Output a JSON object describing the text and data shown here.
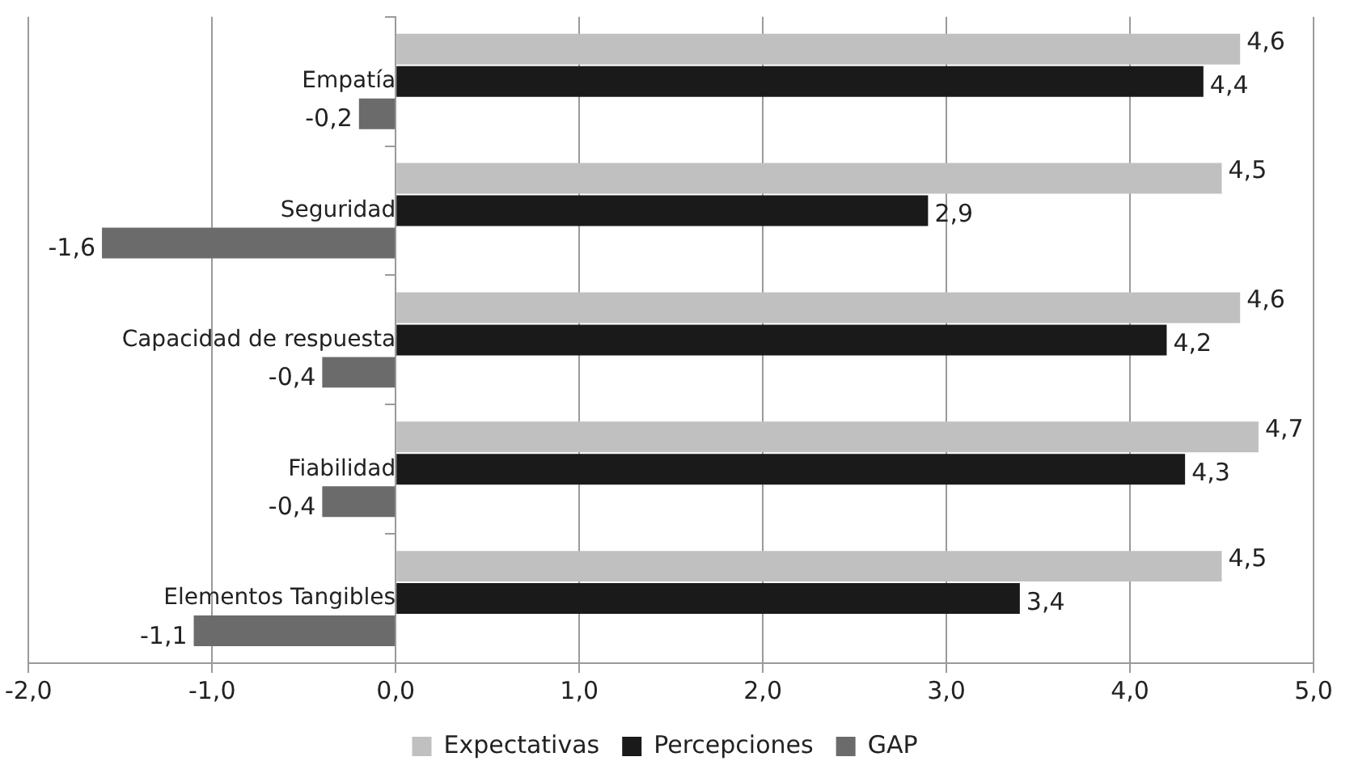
{
  "chart_data": {
    "type": "bar",
    "orientation": "horizontal",
    "categories": [
      "Empatía",
      "Seguridad",
      "Capacidad de respuesta",
      "Fiabilidad",
      "Elementos Tangibles"
    ],
    "series": [
      {
        "name": "Expectativas",
        "color": "#c0c0c0",
        "values": [
          4.6,
          4.5,
          4.6,
          4.7,
          4.5
        ],
        "value_labels": [
          "4,6",
          "4,5",
          "4,6",
          "4,7",
          "4,5"
        ]
      },
      {
        "name": "Percepciones",
        "color": "#1a1a1a",
        "values": [
          4.4,
          2.9,
          4.2,
          4.3,
          3.4
        ],
        "value_labels": [
          "4,4",
          "2,9",
          "4,2",
          "4,3",
          "3,4"
        ]
      },
      {
        "name": "GAP",
        "color": "#6b6b6b",
        "values": [
          -0.2,
          -1.6,
          -0.4,
          -0.4,
          -1.1
        ],
        "value_labels": [
          "-0,2",
          "-1,6",
          "-0,4",
          "-0,4",
          "-1,1"
        ]
      }
    ],
    "xlim": [
      -2,
      5
    ],
    "xticks": [
      {
        "value": -2,
        "label": "-2,0"
      },
      {
        "value": -1,
        "label": "-1,0"
      },
      {
        "value": 0,
        "label": "0,0"
      },
      {
        "value": 1,
        "label": "1,0"
      },
      {
        "value": 2,
        "label": "2,0"
      },
      {
        "value": 3,
        "label": "3,0"
      },
      {
        "value": 4,
        "label": "4,0"
      },
      {
        "value": 5,
        "label": "5,0"
      }
    ],
    "grid": "x",
    "legend": "bottom"
  }
}
